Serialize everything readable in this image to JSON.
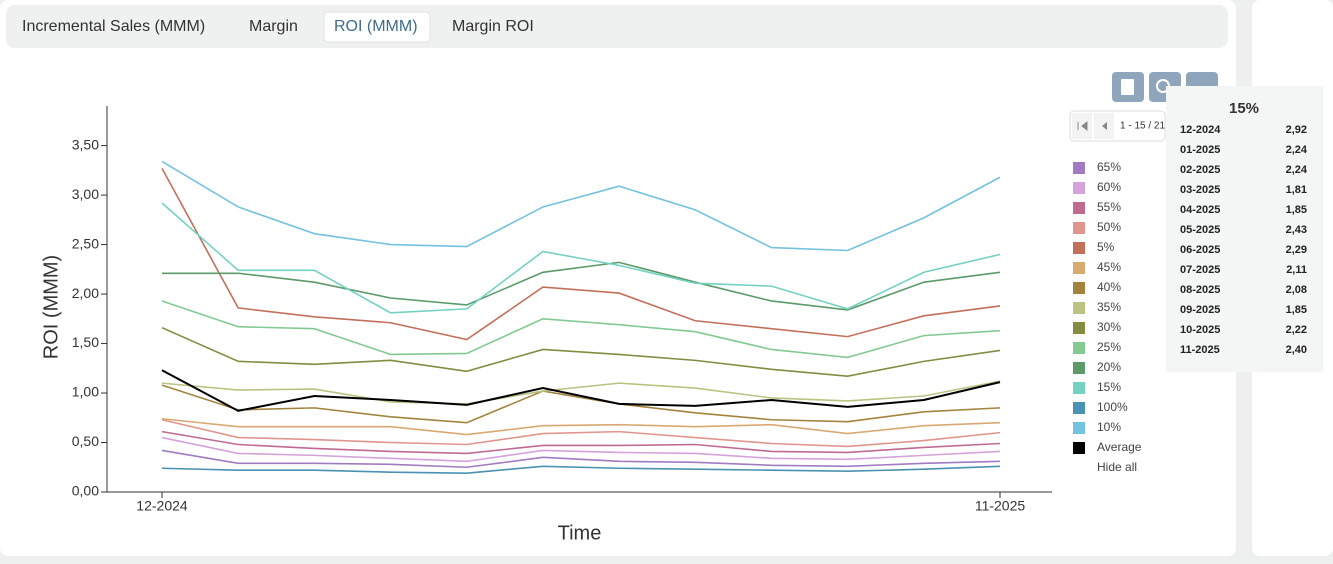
{
  "tabs": [
    "Incremental Sales (MMM)",
    "Margin",
    "ROI (MMM)",
    "Margin ROI"
  ],
  "active_tab": 2,
  "pagination": "1 - 15 / 21",
  "hide_all": "Hide all",
  "tooltip": {
    "months": [
      "12-2024",
      "01-2025",
      "02-2025",
      "03-2025",
      "04-2025",
      "05-2025",
      "06-2025",
      "07-2025",
      "08-2025",
      "09-2025",
      "10-2025",
      "11-2025"
    ]
  },
  "chart_data": {
    "type": "line",
    "x_label": "Time",
    "y_label": "ROI (MMM)",
    "categories": [
      "12-2024",
      null,
      null,
      null,
      null,
      null,
      null,
      null,
      null,
      null,
      null,
      "11-2025"
    ],
    "ylim": [
      0,
      3.9
    ],
    "yticks": [
      {
        "value": 0,
        "label": "0,00"
      },
      {
        "value": 0.5,
        "label": "0,50"
      },
      {
        "value": 1,
        "label": "1,00"
      },
      {
        "value": 1.5,
        "label": "1,50"
      },
      {
        "value": 2,
        "label": "2,00"
      },
      {
        "value": 2.5,
        "label": "2,50"
      },
      {
        "value": 3,
        "label": "3,00"
      },
      {
        "value": 3.5,
        "label": "3,50"
      }
    ],
    "grid": false,
    "series": [
      {
        "name": "65%",
        "color": "#a07cc0",
        "values": [
          0.42,
          0.29,
          0.29,
          0.28,
          0.25,
          0.35,
          0.31,
          0.3,
          0.27,
          0.26,
          0.29,
          0.31
        ]
      },
      {
        "name": "60%",
        "color": "#d6a2dc",
        "values": [
          0.55,
          0.39,
          0.37,
          0.34,
          0.31,
          0.42,
          0.4,
          0.39,
          0.34,
          0.33,
          0.37,
          0.41
        ]
      },
      {
        "name": "55%",
        "color": "#c06a92",
        "values": [
          0.61,
          0.48,
          0.44,
          0.41,
          0.39,
          0.47,
          0.47,
          0.48,
          0.41,
          0.4,
          0.45,
          0.49
        ]
      },
      {
        "name": "50%",
        "color": "#e0968c",
        "values": [
          0.73,
          0.55,
          0.53,
          0.5,
          0.48,
          0.59,
          0.61,
          0.55,
          0.49,
          0.46,
          0.52,
          0.6
        ]
      },
      {
        "name": "5%",
        "color": "#c2705c",
        "values": [
          3.27,
          1.86,
          1.77,
          1.71,
          1.54,
          2.07,
          2.01,
          1.73,
          1.65,
          1.57,
          1.78,
          1.88
        ]
      },
      {
        "name": "45%",
        "color": "#d8aa72",
        "values": [
          0.74,
          0.66,
          0.66,
          0.66,
          0.58,
          0.67,
          0.68,
          0.66,
          0.68,
          0.59,
          0.67,
          0.7
        ]
      },
      {
        "name": "40%",
        "color": "#a2843e",
        "values": [
          1.08,
          0.83,
          0.85,
          0.76,
          0.7,
          1.02,
          0.89,
          0.8,
          0.73,
          0.71,
          0.81,
          0.85
        ]
      },
      {
        "name": "35%",
        "color": "#bcc282",
        "values": [
          1.1,
          1.03,
          1.04,
          0.91,
          0.89,
          1.02,
          1.1,
          1.05,
          0.95,
          0.92,
          0.97,
          1.12
        ]
      },
      {
        "name": "30%",
        "color": "#848c42",
        "values": [
          1.66,
          1.32,
          1.29,
          1.33,
          1.22,
          1.44,
          1.39,
          1.33,
          1.24,
          1.17,
          1.32,
          1.43
        ]
      },
      {
        "name": "25%",
        "color": "#82ca92",
        "values": [
          1.93,
          1.67,
          1.65,
          1.39,
          1.4,
          1.75,
          1.69,
          1.62,
          1.44,
          1.36,
          1.58,
          1.63
        ]
      },
      {
        "name": "20%",
        "color": "#5c9a6c",
        "values": [
          2.21,
          2.21,
          2.12,
          1.96,
          1.89,
          2.22,
          2.32,
          2.12,
          1.93,
          1.84,
          2.12,
          2.22
        ]
      },
      {
        "name": "15%",
        "color": "#74d2c2",
        "values": [
          2.92,
          2.24,
          2.24,
          1.81,
          1.85,
          2.43,
          2.29,
          2.11,
          2.08,
          1.85,
          2.22,
          2.4
        ],
        "value_labels": [
          "2,92",
          "2,24",
          "2,24",
          "1,81",
          "1,85",
          "2,43",
          "2,29",
          "2,11",
          "2,08",
          "1,85",
          "2,22",
          "2,40"
        ]
      },
      {
        "name": "100%",
        "color": "#4a92b2",
        "values": [
          0.24,
          0.22,
          0.22,
          0.2,
          0.19,
          0.26,
          0.24,
          0.23,
          0.22,
          0.21,
          0.23,
          0.26
        ]
      },
      {
        "name": "10%",
        "color": "#74c2de",
        "values": [
          3.34,
          2.88,
          2.61,
          2.5,
          2.48,
          2.88,
          3.09,
          2.85,
          2.47,
          2.44,
          2.77,
          3.18
        ]
      },
      {
        "name": "Average",
        "color": "#000000",
        "values": [
          1.23,
          0.82,
          0.97,
          0.93,
          0.88,
          1.05,
          0.89,
          0.87,
          0.93,
          0.86,
          0.93,
          1.11
        ]
      }
    ]
  }
}
